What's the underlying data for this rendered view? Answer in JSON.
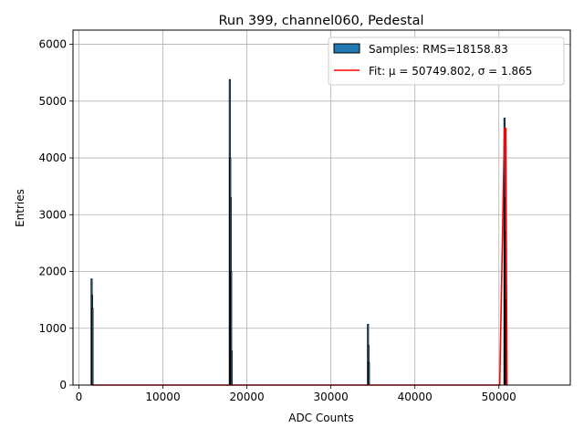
{
  "chart_data": {
    "type": "histogram",
    "title": "Run 399, channel060, Pedestal",
    "xlabel": "ADC Counts",
    "ylabel": "Entries",
    "xlim": [
      -700,
      58500
    ],
    "ylim": [
      0,
      6250
    ],
    "xticks": [
      0,
      10000,
      20000,
      30000,
      40000,
      50000
    ],
    "yticks": [
      0,
      1000,
      2000,
      3000,
      4000,
      5000,
      6000
    ],
    "grid": true,
    "legend_position": "top-right",
    "colors": {
      "bar_fill": "#1f77b4",
      "bar_edge": "#000000",
      "fit": "#ff0000",
      "grid": "#b0b0b0"
    },
    "series": [
      {
        "name": "Samples: RMS=18158.83",
        "kind": "spikes",
        "peaks": [
          {
            "x": 1550,
            "values": [
              1870,
              1580,
              1350
            ]
          },
          {
            "x": 18050,
            "values": [
              5380,
              4000,
              3300,
              2000,
              600
            ]
          },
          {
            "x": 34450,
            "values": [
              1070,
              700,
              400
            ]
          },
          {
            "x": 50750,
            "values": [
              4700,
              4500,
              3300,
              2700,
              1500
            ]
          }
        ]
      },
      {
        "name": "Fit: μ = 50749.802, σ = 1.865",
        "kind": "gaussian_fit",
        "baseline": 0,
        "x_start": 1550,
        "x_end": 51000,
        "peak_x": 50749.802,
        "peak_y": 4520
      }
    ]
  }
}
